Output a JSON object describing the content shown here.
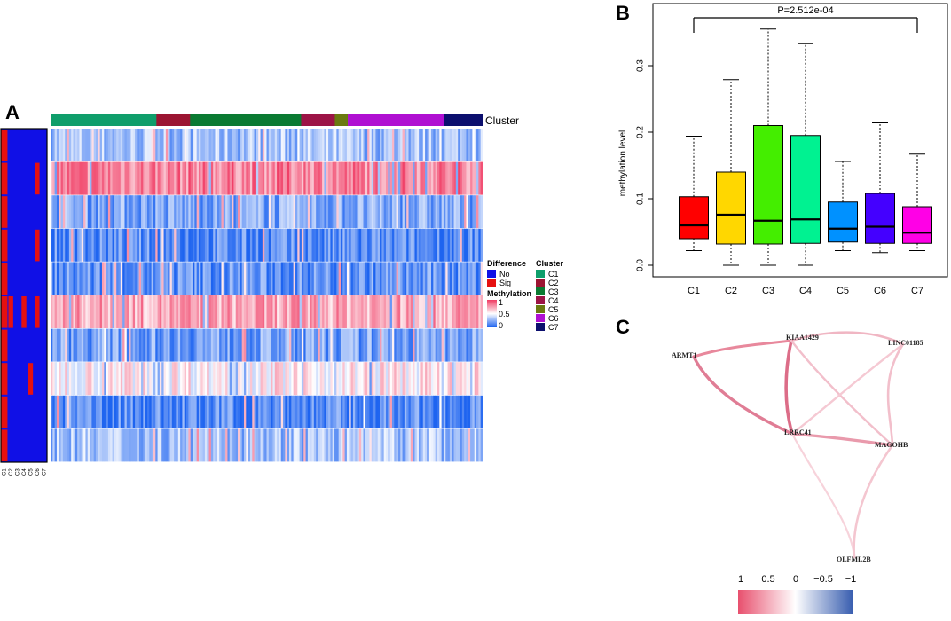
{
  "panels": {
    "a": {
      "label": "A"
    },
    "b": {
      "label": "B"
    },
    "c": {
      "label": "C"
    }
  },
  "heatmap": {
    "cluster_track_label": "Cluster",
    "clusters": [
      {
        "name": "C1",
        "color": "#0f9e6b",
        "fraction": 0.245
      },
      {
        "name": "C2",
        "color": "#9b1532",
        "fraction": 0.078
      },
      {
        "name": "C3",
        "color": "#0a7a32",
        "fraction": 0.257
      },
      {
        "name": "C4",
        "color": "#9c1446",
        "fraction": 0.078
      },
      {
        "name": "C5",
        "color": "#6b7a10",
        "fraction": 0.03
      },
      {
        "name": "C6",
        "color": "#b010d2",
        "fraction": 0.222
      },
      {
        "name": "C7",
        "color": "#0c0f6e",
        "fraction": 0.09
      }
    ],
    "row_mean_methylation": [
      0.3,
      0.82,
      0.22,
      0.12,
      0.15,
      0.72,
      0.2,
      0.55,
      0.12,
      0.3
    ],
    "difference_matrix": [
      [
        1,
        0,
        0,
        0,
        0,
        0,
        0
      ],
      [
        1,
        0,
        0,
        0,
        0,
        1,
        0
      ],
      [
        1,
        0,
        0,
        0,
        0,
        0,
        0
      ],
      [
        1,
        0,
        0,
        0,
        0,
        1,
        0
      ],
      [
        1,
        0,
        0,
        0,
        0,
        0,
        0
      ],
      [
        1,
        1,
        0,
        1,
        0,
        1,
        0
      ],
      [
        1,
        0,
        0,
        0,
        0,
        0,
        0
      ],
      [
        1,
        0,
        0,
        0,
        1,
        0,
        0
      ],
      [
        1,
        0,
        0,
        0,
        0,
        0,
        0
      ],
      [
        1,
        0,
        0,
        0,
        0,
        0,
        0
      ]
    ],
    "difference_columns": [
      "C1",
      "C2",
      "C3",
      "C4",
      "C5",
      "C6",
      "C7"
    ],
    "legend": {
      "difference_title": "Difference",
      "difference_items": [
        {
          "label": "No",
          "color": "#1010e6"
        },
        {
          "label": "Sig",
          "color": "#e61010"
        }
      ],
      "methylation_title": "Methylation",
      "methylation_ticks": [
        "1",
        "0.5",
        "0"
      ],
      "methylation_colors": {
        "high": "#f03c64",
        "mid": "#ffffff",
        "low": "#1e64f0"
      },
      "cluster_title": "Cluster"
    }
  },
  "chart_data": [
    {
      "type": "box",
      "title": "",
      "ylabel": "methylation level",
      "xlabel": "",
      "ylim": [
        -0.018,
        0.39
      ],
      "yticks": [
        "0.0",
        "0.1",
        "0.2",
        "0.3"
      ],
      "ytick_values": [
        0,
        0.1,
        0.2,
        0.3
      ],
      "annotation": "P=2.512e-04",
      "categories": [
        "C1",
        "C2",
        "C3",
        "C4",
        "C5",
        "C6",
        "C7"
      ],
      "boxes": [
        {
          "name": "C1",
          "min": 0.022,
          "q1": 0.04,
          "median": 0.06,
          "q3": 0.103,
          "max": 0.194,
          "color": "#ff0000"
        },
        {
          "name": "C2",
          "min": 0.0,
          "q1": 0.032,
          "median": 0.076,
          "q3": 0.14,
          "max": 0.279,
          "color": "#ffd700"
        },
        {
          "name": "C3",
          "min": 0.0,
          "q1": 0.032,
          "median": 0.067,
          "q3": 0.21,
          "max": 0.355,
          "color": "#44ee00"
        },
        {
          "name": "C4",
          "min": 0.0,
          "q1": 0.033,
          "median": 0.069,
          "q3": 0.195,
          "max": 0.333,
          "color": "#00f291"
        },
        {
          "name": "C5",
          "min": 0.022,
          "q1": 0.035,
          "median": 0.055,
          "q3": 0.095,
          "max": 0.156,
          "color": "#0091ff"
        },
        {
          "name": "C6",
          "min": 0.019,
          "q1": 0.033,
          "median": 0.058,
          "q3": 0.108,
          "max": 0.214,
          "color": "#4400ff"
        },
        {
          "name": "C7",
          "min": 0.022,
          "q1": 0.033,
          "median": 0.049,
          "q3": 0.088,
          "max": 0.167,
          "color": "#ff00e6"
        }
      ]
    },
    {
      "type": "network",
      "nodes": [
        "ARMT1",
        "KIAA1429",
        "LINC01185",
        "LRRC41",
        "MAGOHB",
        "OLFML2B"
      ],
      "edges": [
        {
          "source": "ARMT1",
          "target": "KIAA1429",
          "weight": 0.5
        },
        {
          "source": "ARMT1",
          "target": "LRRC41",
          "weight": 0.55
        },
        {
          "source": "KIAA1429",
          "target": "LINC01185",
          "weight": 0.35
        },
        {
          "source": "KIAA1429",
          "target": "LRRC41",
          "weight": 0.75
        },
        {
          "source": "KIAA1429",
          "target": "MAGOHB",
          "weight": 0.4
        },
        {
          "source": "LINC01185",
          "target": "LRRC41",
          "weight": 0.3
        },
        {
          "source": "LINC01185",
          "target": "MAGOHB",
          "weight": 0.35
        },
        {
          "source": "LRRC41",
          "target": "MAGOHB",
          "weight": 0.45
        },
        {
          "source": "LRRC41",
          "target": "OLFML2B",
          "weight": 0.25
        },
        {
          "source": "MAGOHB",
          "target": "OLFML2B",
          "weight": 0.3
        }
      ],
      "colorbar": {
        "ticks": [
          "1",
          "0.5",
          "0",
          "−0.5",
          "−1"
        ],
        "high_color": "#e8506e",
        "mid_color": "#ffffff",
        "low_color": "#3a5fb0"
      }
    }
  ]
}
